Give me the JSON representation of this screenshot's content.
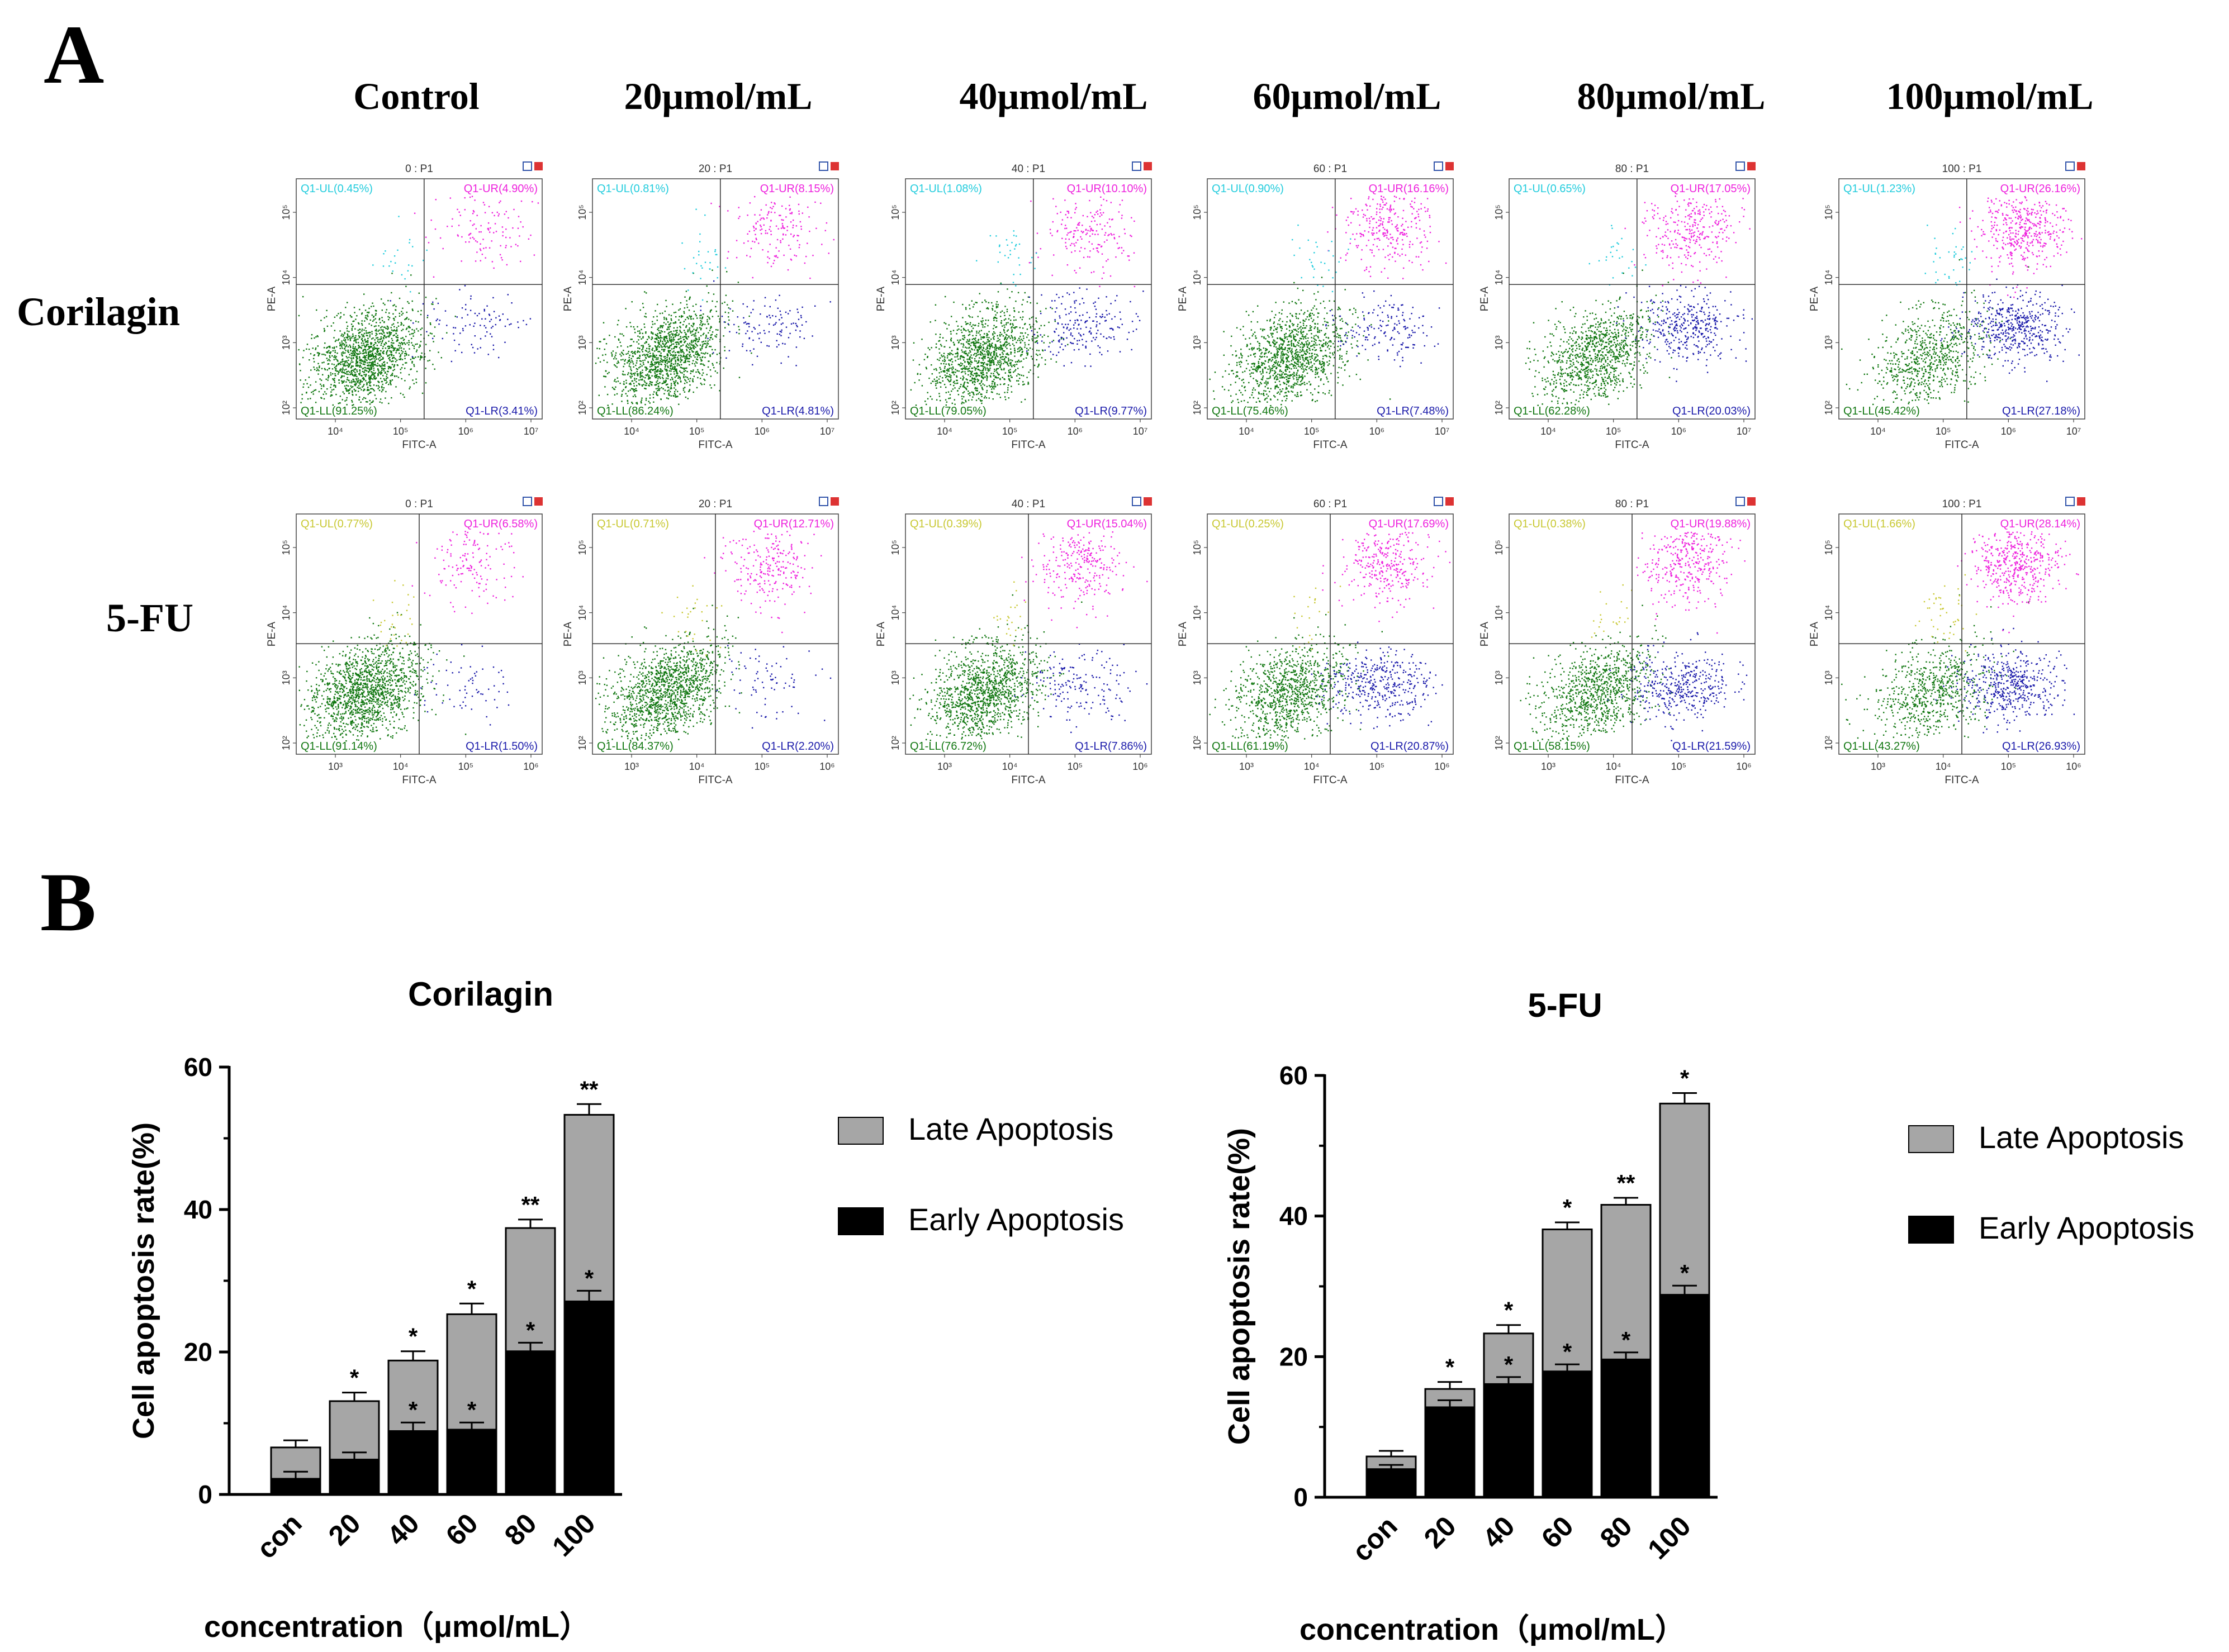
{
  "figure": {
    "panel_a_letter": "A",
    "panel_b_letter": "B",
    "column_titles": [
      "Control",
      "20μmol/mL",
      "40μmol/mL",
      "60μmol/mL",
      "80μmol/mL",
      "100μmol/mL"
    ],
    "row_labels": [
      "Corilagin",
      "5-FU"
    ]
  },
  "colors": {
    "ul_corilagin": "#22ccdd",
    "ul_5fu": "#c8c832",
    "ur": "#ee22dd",
    "ll": "#117711",
    "lr": "#1a1aaa",
    "late_bar": "#a6a6a6",
    "early_bar": "#000000",
    "icon_blue": "#3355aa",
    "icon_red": "#dd3333"
  },
  "flow_plots": {
    "x_axis_label": "FITC-A",
    "y_axis_label": "PE-A",
    "y_ticks": [
      "10²",
      "10³",
      "10⁴",
      "10⁵"
    ],
    "rows": [
      {
        "name": "Corilagin",
        "x_ticks": [
          "10⁴",
          "10⁵",
          "10⁶",
          "10⁷"
        ],
        "plots": [
          {
            "title": "0 : P1",
            "ul": "Q1-UL(0.45%)",
            "ur": "Q1-UR(4.90%)",
            "ll": "Q1-LL(91.25%)",
            "lr": "Q1-LR(3.41%)"
          },
          {
            "title": "20 : P1",
            "ul": "Q1-UL(0.81%)",
            "ur": "Q1-UR(8.15%)",
            "ll": "Q1-LL(86.24%)",
            "lr": "Q1-LR(4.81%)"
          },
          {
            "title": "40 : P1",
            "ul": "Q1-UL(1.08%)",
            "ur": "Q1-UR(10.10%)",
            "ll": "Q1-LL(79.05%)",
            "lr": "Q1-LR(9.77%)"
          },
          {
            "title": "60 : P1",
            "ul": "Q1-UL(0.90%)",
            "ur": "Q1-UR(16.16%)",
            "ll": "Q1-LL(75.46%)",
            "lr": "Q1-LR(7.48%)"
          },
          {
            "title": "80 : P1",
            "ul": "Q1-UL(0.65%)",
            "ur": "Q1-UR(17.05%)",
            "ll": "Q1-LL(62.28%)",
            "lr": "Q1-LR(20.03%)"
          },
          {
            "title": "100 : P1",
            "ul": "Q1-UL(1.23%)",
            "ur": "Q1-UR(26.16%)",
            "ll": "Q1-LL(45.42%)",
            "lr": "Q1-LR(27.18%)"
          }
        ]
      },
      {
        "name": "5-FU",
        "x_ticks": [
          "10³",
          "10⁴",
          "10⁵",
          "10⁶"
        ],
        "plots": [
          {
            "title": "0 : P1",
            "ul": "Q1-UL(0.77%)",
            "ur": "Q1-UR(6.58%)",
            "ll": "Q1-LL(91.14%)",
            "lr": "Q1-LR(1.50%)"
          },
          {
            "title": "20 : P1",
            "ul": "Q1-UL(0.71%)",
            "ur": "Q1-UR(12.71%)",
            "ll": "Q1-LL(84.37%)",
            "lr": "Q1-LR(2.20%)"
          },
          {
            "title": "40 : P1",
            "ul": "Q1-UL(0.39%)",
            "ur": "Q1-UR(15.04%)",
            "ll": "Q1-LL(76.72%)",
            "lr": "Q1-LR(7.86%)"
          },
          {
            "title": "60 : P1",
            "ul": "Q1-UL(0.25%)",
            "ur": "Q1-UR(17.69%)",
            "ll": "Q1-LL(61.19%)",
            "lr": "Q1-LR(20.87%)"
          },
          {
            "title": "80 : P1",
            "ul": "Q1-UL(0.38%)",
            "ur": "Q1-UR(19.88%)",
            "ll": "Q1-LL(58.15%)",
            "lr": "Q1-LR(21.59%)"
          },
          {
            "title": "100 : P1",
            "ul": "Q1-UL(1.66%)",
            "ur": "Q1-UR(28.14%)",
            "ll": "Q1-LL(43.27%)",
            "lr": "Q1-LR(26.93%)"
          }
        ]
      }
    ]
  },
  "chart_data": [
    {
      "type": "bar",
      "stacked": true,
      "title": "Corilagin",
      "xlabel": "concentration（μmol/mL）",
      "ylabel": "Cell apoptosis rate(%)",
      "ylim": [
        0,
        60
      ],
      "yticks": [
        0,
        20,
        40,
        60
      ],
      "categories": [
        "con",
        "20",
        "40",
        "60",
        "80",
        "100"
      ],
      "legend": [
        "Late Apoptosis",
        "Early Apoptosis"
      ],
      "series": [
        {
          "name": "Early Apoptosis",
          "values": [
            2.2,
            4.9,
            8.9,
            9.1,
            20.1,
            27.1
          ],
          "errors": [
            1.0,
            1.0,
            1.2,
            1.0,
            1.2,
            1.5
          ],
          "stars": [
            "",
            "",
            "*",
            "*",
            "*",
            "*"
          ]
        },
        {
          "name": "Late Apoptosis",
          "values": [
            4.4,
            8.2,
            9.9,
            16.2,
            17.3,
            26.2
          ],
          "errors": [
            1.0,
            1.2,
            1.3,
            1.5,
            1.2,
            1.5
          ],
          "stars": [
            "",
            "*",
            "*",
            "*",
            "**",
            "**"
          ]
        }
      ]
    },
    {
      "type": "bar",
      "stacked": true,
      "title": "5-FU",
      "xlabel": "concentration（μmol/mL）",
      "ylabel": "Cell apoptosis rate(%)",
      "ylim": [
        0,
        60
      ],
      "yticks": [
        0,
        20,
        40,
        60
      ],
      "categories": [
        "con",
        "20",
        "40",
        "60",
        "80",
        "100"
      ],
      "legend": [
        "Late Apoptosis",
        "Early Apoptosis"
      ],
      "series": [
        {
          "name": "Early Apoptosis",
          "values": [
            4.0,
            12.8,
            16.1,
            17.9,
            19.6,
            28.8
          ],
          "errors": [
            0.6,
            1.0,
            1.0,
            1.0,
            1.0,
            1.3
          ],
          "stars": [
            "",
            "",
            "*",
            "*",
            "*",
            "*"
          ]
        },
        {
          "name": "Late Apoptosis",
          "values": [
            1.8,
            2.6,
            7.2,
            20.2,
            22.0,
            27.2
          ],
          "errors": [
            0.8,
            1.0,
            1.2,
            1.0,
            1.0,
            1.5
          ],
          "stars": [
            "",
            "*",
            "*",
            "*",
            "**",
            "*"
          ]
        }
      ]
    }
  ]
}
